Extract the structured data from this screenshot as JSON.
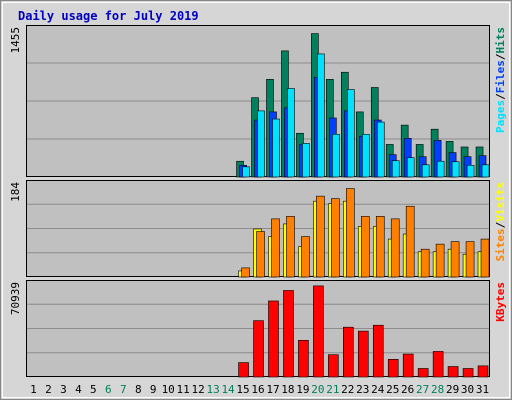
{
  "chart_data": {
    "type": "bar",
    "title": "Daily usage for July 2019",
    "days": [
      "1",
      "2",
      "3",
      "4",
      "5",
      "6",
      "7",
      "8",
      "9",
      "10",
      "11",
      "12",
      "13",
      "14",
      "15",
      "16",
      "17",
      "18",
      "19",
      "20",
      "21",
      "22",
      "23",
      "24",
      "25",
      "26",
      "27",
      "28",
      "29",
      "30",
      "31"
    ],
    "weekend_days": [
      "6",
      "7",
      "13",
      "14",
      "20",
      "21",
      "27",
      "28"
    ],
    "panels": [
      {
        "id": "hits",
        "ymax_label": "1455",
        "ymax": 1455,
        "legend": [
          {
            "name": "Pages",
            "color": "#00e0ff"
          },
          {
            "name": "/",
            "color": "#000000"
          },
          {
            "name": "Files",
            "color": "#0040ff"
          },
          {
            "name": "/",
            "color": "#000000"
          },
          {
            "name": "Hits",
            "color": "#00805c"
          }
        ],
        "series": [
          {
            "name": "Hits",
            "color": "#00805c",
            "values": [
              0,
              0,
              0,
              0,
              0,
              0,
              0,
              0,
              0,
              0,
              0,
              0,
              0,
              0,
              155,
              780,
              960,
              1240,
              430,
              1410,
              960,
              1030,
              640,
              880,
              320,
              510,
              320,
              470,
              350,
              295,
              295
            ]
          },
          {
            "name": "Files",
            "color": "#0040ff",
            "values": [
              0,
              0,
              0,
              0,
              0,
              0,
              0,
              0,
              0,
              0,
              0,
              0,
              0,
              0,
              115,
              560,
              640,
              680,
              320,
              980,
              580,
              650,
              400,
              560,
              220,
              380,
              200,
              360,
              240,
              200,
              210
            ]
          },
          {
            "name": "Pages",
            "color": "#00e0ff",
            "values": [
              0,
              0,
              0,
              0,
              0,
              0,
              0,
              0,
              0,
              0,
              0,
              0,
              0,
              0,
              100,
              650,
              570,
              870,
              330,
              1210,
              420,
              860,
              420,
              540,
              160,
              190,
              120,
              155,
              150,
              115,
              120
            ]
          }
        ]
      },
      {
        "id": "visits",
        "ymax_label": "184",
        "ymax": 184,
        "legend": [
          {
            "name": "Sites",
            "color": "#ff8000"
          },
          {
            "name": "/",
            "color": "#000000"
          },
          {
            "name": "Visits",
            "color": "#ffff00"
          }
        ],
        "series": [
          {
            "name": "Visits",
            "color": "#ffff00",
            "values": [
              0,
              0,
              0,
              0,
              0,
              0,
              0,
              0,
              0,
              0,
              0,
              0,
              0,
              0,
              12,
              95,
              80,
              105,
              60,
              150,
              145,
              150,
              100,
              100,
              75,
              85,
              50,
              50,
              55,
              45,
              50
            ]
          },
          {
            "name": "Sites",
            "color": "#ff8000",
            "values": [
              0,
              0,
              0,
              0,
              0,
              0,
              0,
              0,
              0,
              0,
              0,
              0,
              0,
              0,
              18,
              90,
              115,
              120,
              80,
              160,
              155,
              175,
              120,
              120,
              115,
              140,
              55,
              65,
              70,
              70,
              75
            ]
          }
        ]
      },
      {
        "id": "kbytes",
        "ymax_label": "70939",
        "ymax": 70939,
        "legend": [
          {
            "name": "KBytes",
            "color": "#ff0000"
          }
        ],
        "series": [
          {
            "name": "KBytes",
            "color": "#ff0000",
            "values": [
              0,
              0,
              0,
              0,
              0,
              0,
              0,
              0,
              0,
              0,
              0,
              0,
              0,
              0,
              11000,
              43000,
              58000,
              66000,
              28000,
              69500,
              17000,
              38000,
              35000,
              39500,
              13500,
              17500,
              6500,
              19500,
              8000,
              6500,
              8500
            ]
          }
        ]
      }
    ]
  }
}
